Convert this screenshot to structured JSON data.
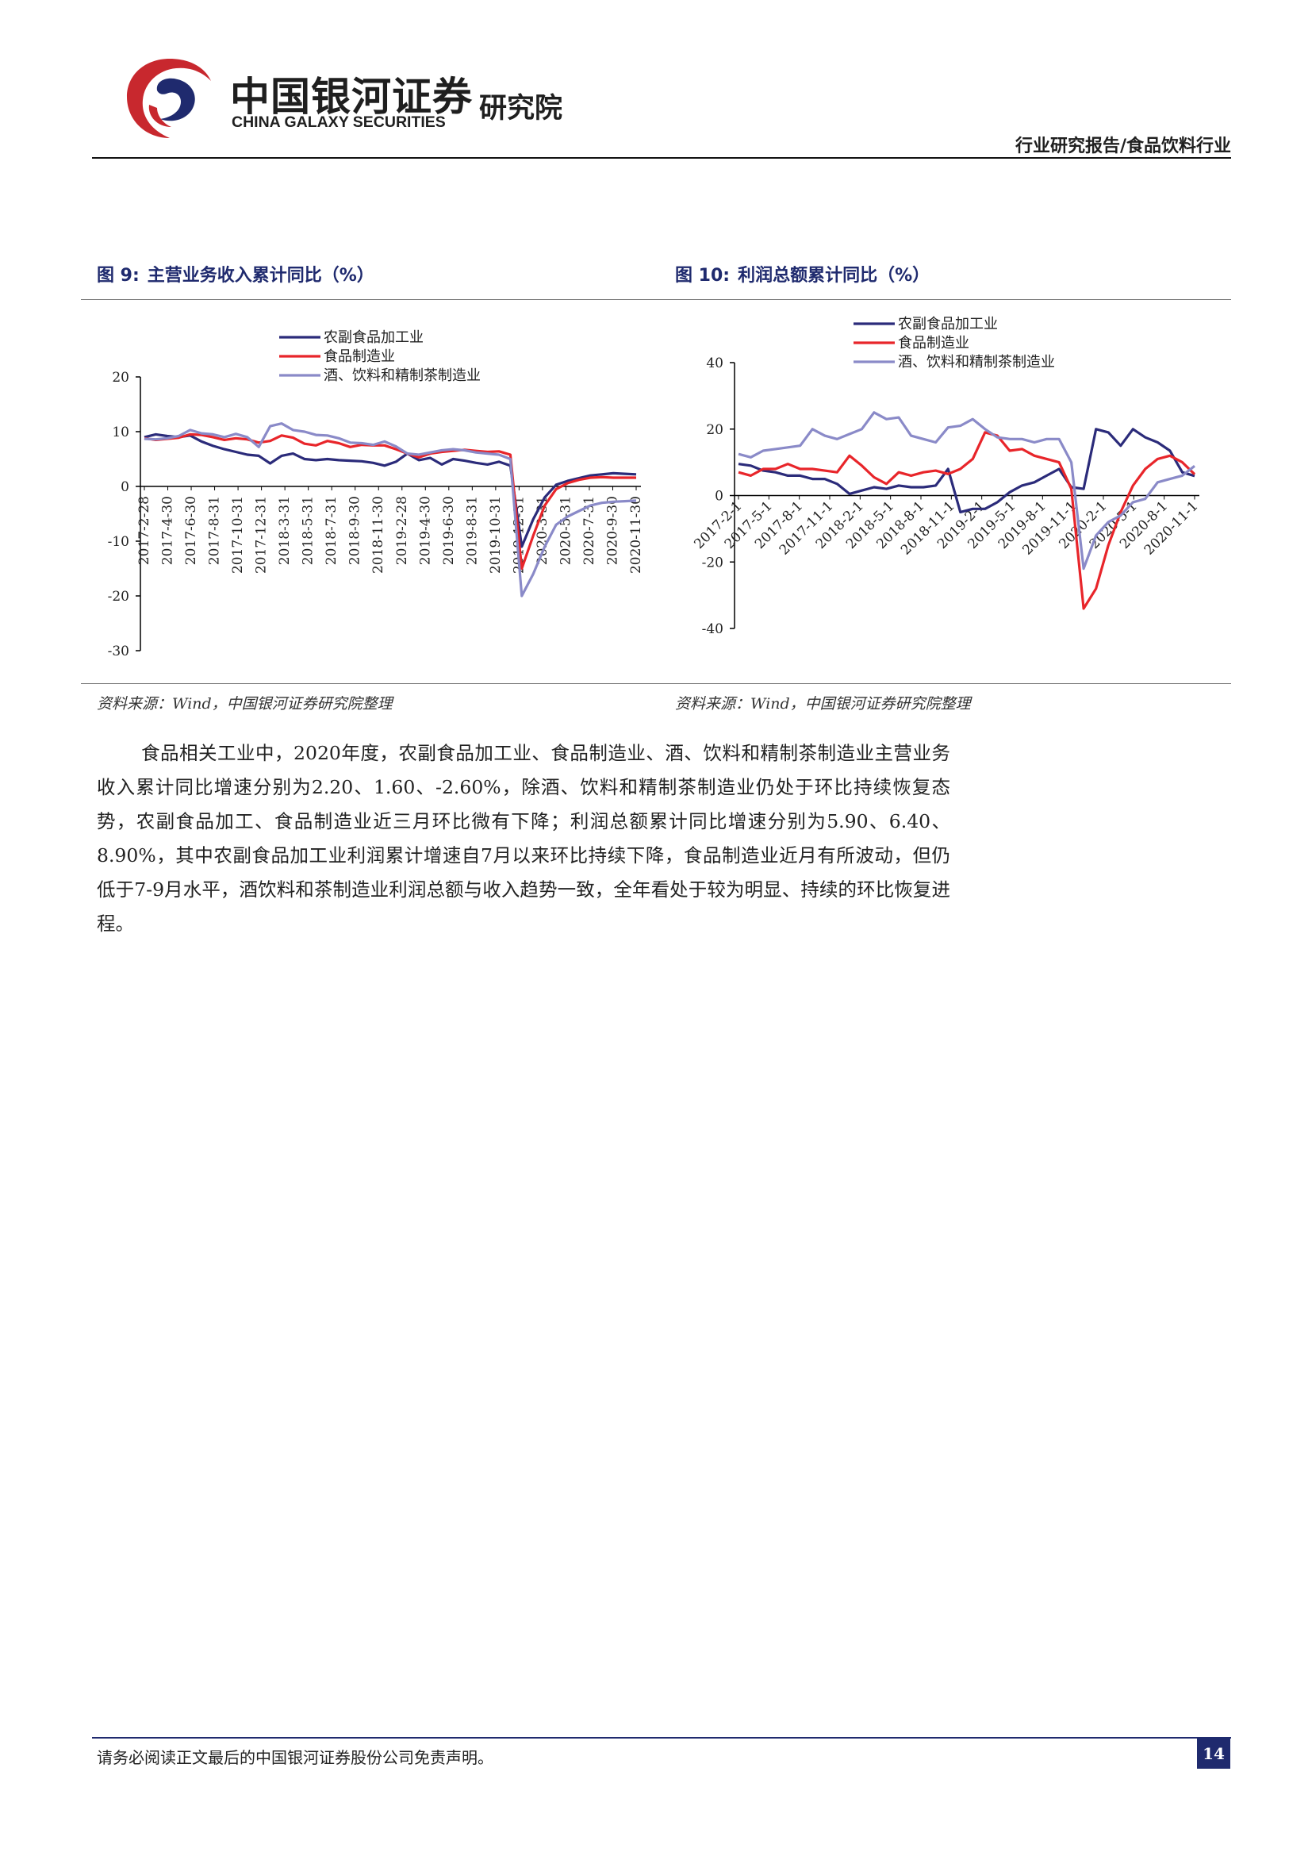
{
  "header": {
    "logo_cn": "中国银河证券",
    "logo_en": "CHINA GALAXY SECURITIES",
    "logo_institute": "研究院",
    "report_type": "行业研究报告/食品饮料行业"
  },
  "figures": {
    "fig9": {
      "number": "图 9:",
      "title": "主营业务收入累计同比（%）",
      "source": "资料来源：Wind，中国银河证券研究院整理"
    },
    "fig10": {
      "number": "图 10:",
      "title": "利润总额累计同比（%）",
      "source": "资料来源：Wind，中国银河证券研究院整理"
    }
  },
  "colors": {
    "series1": "#2b2b7a",
    "series2": "#e8252a",
    "series3": "#8a8ac8",
    "brand_navy": "#1f2a6e",
    "brand_red": "#c8282e"
  },
  "chart_data": [
    {
      "type": "line",
      "title": "主营业务收入累计同比（%）",
      "ylim": [
        -30,
        20
      ],
      "yticks": [
        "20",
        "10",
        "0",
        "-10",
        "-20",
        "-30"
      ],
      "xtick_labels": [
        "2017-2-28",
        "2017-4-30",
        "2017-6-30",
        "2017-8-31",
        "2017-10-31",
        "2017-12-31",
        "2018-3-31",
        "2018-5-31",
        "2018-7-31",
        "2018-9-30",
        "2018-11-30",
        "2019-2-28",
        "2019-4-30",
        "2019-6-30",
        "2019-8-31",
        "2019-10-31",
        "2019-12-31",
        "2020-3-31",
        "2020-5-31",
        "2020-7-31",
        "2020-9-30",
        "2020-11-30"
      ],
      "legend_position": "top",
      "series": [
        {
          "name": "农副食品加工业",
          "values": [
            9.0,
            9.5,
            9.2,
            9.0,
            9.3,
            8.2,
            7.4,
            6.8,
            6.3,
            5.8,
            5.6,
            4.2,
            5.6,
            6.0,
            5.0,
            4.8,
            5.0,
            4.8,
            4.7,
            4.6,
            4.3,
            3.8,
            4.5,
            6.0,
            4.8,
            5.2,
            4.0,
            5.0,
            4.7,
            4.3,
            4.0,
            4.5,
            3.8,
            -11.0,
            -6.0,
            -2.0,
            0.3,
            1.0,
            1.5,
            2.0,
            2.2,
            2.4,
            2.3,
            2.2
          ]
        },
        {
          "name": "食品制造业",
          "values": [
            8.8,
            8.5,
            8.7,
            8.9,
            9.5,
            9.4,
            9.0,
            8.5,
            8.8,
            8.6,
            8.0,
            8.3,
            9.3,
            8.9,
            7.8,
            7.5,
            8.3,
            7.9,
            7.2,
            7.6,
            7.5,
            7.5,
            6.8,
            6.0,
            5.3,
            6.0,
            6.3,
            6.5,
            6.7,
            6.5,
            6.3,
            6.4,
            5.8,
            -15.0,
            -9.0,
            -3.5,
            -0.5,
            0.6,
            1.2,
            1.6,
            1.7,
            1.6,
            1.6,
            1.6
          ]
        },
        {
          "name": "酒、饮料和精制茶制造业",
          "values": [
            8.7,
            8.6,
            8.8,
            9.2,
            10.3,
            9.7,
            9.5,
            9.0,
            9.6,
            9.0,
            7.2,
            11.0,
            11.5,
            10.3,
            10.0,
            9.4,
            9.3,
            8.8,
            8.0,
            7.9,
            7.6,
            8.2,
            7.3,
            6.0,
            5.8,
            6.2,
            6.6,
            6.8,
            6.6,
            6.2,
            6.0,
            5.8,
            5.0,
            -20.0,
            -16.0,
            -11.0,
            -7.0,
            -5.5,
            -4.5,
            -3.5,
            -3.0,
            -2.8,
            -2.7,
            -2.6
          ]
        }
      ]
    },
    {
      "type": "line",
      "title": "利润总额累计同比（%）",
      "ylim": [
        -40,
        40
      ],
      "yticks": [
        "40",
        "20",
        "0",
        "-20",
        "-40"
      ],
      "xtick_labels": [
        "2017-2-1",
        "2017-5-1",
        "2017-8-1",
        "2017-11-1",
        "2018-2-1",
        "2018-5-1",
        "2018-8-1",
        "2018-11-1",
        "2019-2-1",
        "2019-5-1",
        "2019-8-1",
        "2019-11-1",
        "2020-2-1",
        "2020-5-1",
        "2020-8-1",
        "2020-11-1"
      ],
      "legend_position": "top",
      "series": [
        {
          "name": "农副食品加工业",
          "values": [
            9.5,
            9.0,
            7.5,
            7.0,
            6.0,
            6.0,
            5.0,
            5.0,
            3.5,
            0.5,
            1.5,
            2.5,
            2.0,
            3.0,
            2.5,
            2.5,
            3.0,
            8.0,
            -5.0,
            -4.0,
            -4.0,
            -2.0,
            1.0,
            3.0,
            4.0,
            6.0,
            8.0,
            2.5,
            2.0,
            20.0,
            19.0,
            15.0,
            20.0,
            17.5,
            16.0,
            13.5,
            7.0,
            5.9
          ]
        },
        {
          "name": "食品制造业",
          "values": [
            7.0,
            6.0,
            8.0,
            8.0,
            9.5,
            8.0,
            8.0,
            7.5,
            7.0,
            12.0,
            9.0,
            5.5,
            3.5,
            7.0,
            6.0,
            7.0,
            7.5,
            6.5,
            8.0,
            11.0,
            19.0,
            18.0,
            13.5,
            14.0,
            12.0,
            11.0,
            10.0,
            2.0,
            -34.0,
            -28.0,
            -15.0,
            -5.0,
            3.0,
            8.0,
            11.0,
            12.0,
            10.0,
            6.4
          ]
        },
        {
          "name": "酒、饮料和精制茶制造业",
          "values": [
            12.5,
            11.5,
            13.5,
            14.0,
            14.5,
            15.0,
            20.0,
            18.0,
            17.0,
            18.5,
            20.0,
            25.0,
            23.0,
            23.5,
            18.0,
            17.0,
            16.0,
            20.5,
            21.0,
            23.0,
            20.0,
            17.5,
            17.0,
            17.0,
            16.0,
            17.0,
            17.0,
            10.0,
            -22.0,
            -12.0,
            -8.0,
            -6.0,
            -2.0,
            -1.0,
            4.0,
            5.0,
            6.0,
            8.9
          ]
        }
      ]
    }
  ],
  "body": {
    "paragraph": "食品相关工业中，2020年度，农副食品加工业、食品制造业、酒、饮料和精制茶制造业主营业务收入累计同比增速分别为2.20、1.60、-2.60%，除酒、饮料和精制茶制造业仍处于环比持续恢复态势，农副食品加工、食品制造业近三月环比微有下降；利润总额累计同比增速分别为5.90、6.40、8.90%，其中农副食品加工业利润累计增速自7月以来环比持续下降，食品制造业近月有所波动，但仍低于7-9月水平，酒饮料和茶制造业利润总额与收入趋势一致，全年看处于较为明显、持续的环比恢复进程。"
  },
  "footer": {
    "disclaimer": "请务必阅读正文最后的中国银河证券股份公司免责声明。",
    "page_number": "14"
  }
}
